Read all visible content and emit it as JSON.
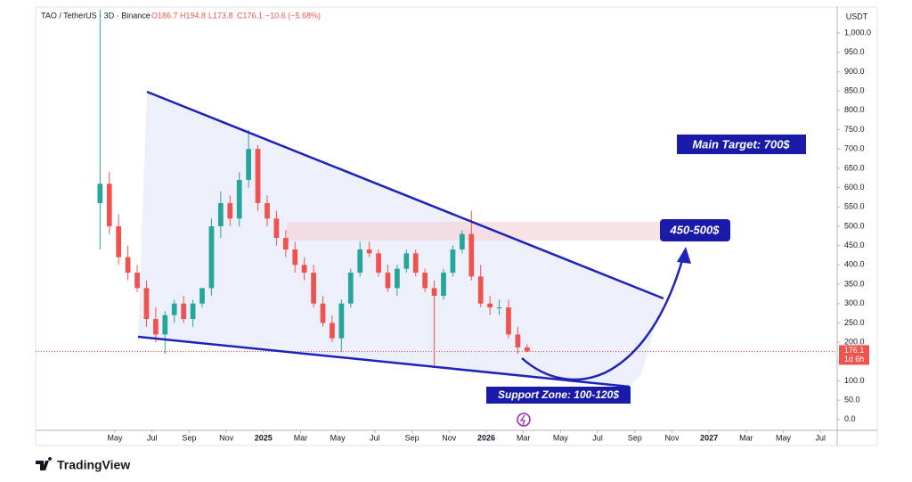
{
  "chart_data": {
    "type": "candlestick",
    "header": {
      "symbol": "TAO / TetherUS · 3D · Binance",
      "open": "O186.7",
      "high": "H194.8",
      "low": "L173.8",
      "close": "C176.1",
      "change": "−10.6 (−5.68%)"
    },
    "y_unit": "USDT",
    "annotations": {
      "target": "Main Target: 700$",
      "resistance": "450-500$",
      "support": "Support Zone: 100-120$"
    },
    "last_price": {
      "value": 176.1,
      "label": "176.1",
      "countdown": "1d 6h"
    },
    "brand": "TradingView",
    "up_color": "#26a69a",
    "down_color": "#ef5350",
    "x": [
      3.2,
      3.7,
      4.2,
      4.7,
      5.2,
      5.7,
      6.2,
      6.7,
      7.2,
      7.7,
      8.2,
      8.7,
      9.2,
      9.7,
      10.2,
      10.7,
      11.2,
      11.7,
      12.2,
      12.7,
      13.2,
      13.7,
      14.2,
      14.7,
      15.2,
      15.7,
      16.2,
      16.7,
      17.2,
      17.7,
      18.2,
      18.7,
      19.2,
      19.7,
      20.2,
      20.7,
      21.2,
      21.7,
      22.2,
      22.7,
      23.2,
      23.7,
      24.2,
      24.7,
      25.2,
      25.7,
      26.2
    ],
    "open": [
      560,
      610,
      500,
      420,
      380,
      340,
      260,
      220,
      270,
      300,
      260,
      300,
      340,
      500,
      560,
      520,
      620,
      700,
      560,
      520,
      470,
      440,
      400,
      380,
      300,
      250,
      210,
      300,
      380,
      440,
      430,
      380,
      340,
      390,
      430,
      380,
      340,
      320,
      380,
      440,
      480,
      370,
      300,
      290,
      290,
      220,
      186.7
    ],
    "high": [
      1060,
      640,
      530,
      450,
      400,
      360,
      290,
      280,
      310,
      320,
      310,
      330,
      520,
      590,
      580,
      640,
      750,
      710,
      580,
      540,
      490,
      460,
      420,
      400,
      320,
      270,
      310,
      390,
      460,
      460,
      440,
      400,
      400,
      440,
      440,
      390,
      360,
      390,
      450,
      490,
      540,
      400,
      320,
      310,
      310,
      240,
      194.8
    ],
    "low": [
      440,
      480,
      400,
      360,
      330,
      240,
      200,
      170,
      250,
      250,
      240,
      290,
      320,
      470,
      500,
      500,
      600,
      540,
      500,
      450,
      420,
      380,
      360,
      290,
      240,
      200,
      175,
      290,
      370,
      420,
      370,
      330,
      320,
      380,
      370,
      330,
      140,
      310,
      370,
      430,
      360,
      290,
      270,
      270,
      210,
      170,
      173.8
    ],
    "close": [
      610,
      500,
      420,
      380,
      340,
      260,
      220,
      270,
      300,
      260,
      300,
      340,
      500,
      560,
      520,
      620,
      700,
      560,
      520,
      470,
      440,
      400,
      380,
      300,
      250,
      210,
      300,
      380,
      440,
      430,
      380,
      340,
      390,
      430,
      380,
      340,
      320,
      380,
      440,
      480,
      370,
      300,
      290,
      290,
      220,
      186.7,
      176.1
    ],
    "xlim": [
      -0.27,
      42.9
    ],
    "xticks": [
      {
        "value": 4,
        "label": "May"
      },
      {
        "value": 6,
        "label": "Jul"
      },
      {
        "value": 8,
        "label": "Sep"
      },
      {
        "value": 10,
        "label": "Nov"
      },
      {
        "value": 12,
        "label": "2025"
      },
      {
        "value": 14,
        "label": "Mar"
      },
      {
        "value": 16,
        "label": "May"
      },
      {
        "value": 18,
        "label": "Jul"
      },
      {
        "value": 20,
        "label": "Sep"
      },
      {
        "value": 22,
        "label": "Nov"
      },
      {
        "value": 24,
        "label": "2026"
      },
      {
        "value": 26,
        "label": "Mar"
      },
      {
        "value": 28,
        "label": "May"
      },
      {
        "value": 30,
        "label": "Jul"
      },
      {
        "value": 32,
        "label": "Sep"
      },
      {
        "value": 34,
        "label": "Nov"
      },
      {
        "value": 36,
        "label": "2027"
      },
      {
        "value": 38,
        "label": "Mar"
      },
      {
        "value": 40,
        "label": "May"
      },
      {
        "value": 42,
        "label": "Jul"
      }
    ],
    "ylim": [
      -28,
      1067
    ],
    "yticks": [
      {
        "value": 0,
        "label": "0.0"
      },
      {
        "value": 50,
        "label": "50.0"
      },
      {
        "value": 100,
        "label": "100.0"
      },
      {
        "value": 150,
        "label": "150.0"
      },
      {
        "value": 200,
        "label": "200.0"
      },
      {
        "value": 250,
        "label": "250.0"
      },
      {
        "value": 300,
        "label": "300.0"
      },
      {
        "value": 350,
        "label": "350.0"
      },
      {
        "value": 400,
        "label": "400.0"
      },
      {
        "value": 450,
        "label": "450.0"
      },
      {
        "value": 500,
        "label": "500.0"
      },
      {
        "value": 550,
        "label": "550.0"
      },
      {
        "value": 600,
        "label": "600.0"
      },
      {
        "value": 650,
        "label": "650.0"
      },
      {
        "value": 700,
        "label": "700.0"
      },
      {
        "value": 750,
        "label": "750.0"
      },
      {
        "value": 800,
        "label": "800.0"
      },
      {
        "value": 850,
        "label": "850.0"
      },
      {
        "value": 900,
        "label": "900.0"
      },
      {
        "value": 950,
        "label": "950.0"
      },
      {
        "value": 1000,
        "label": "1,000.0"
      }
    ],
    "grid": false
  }
}
